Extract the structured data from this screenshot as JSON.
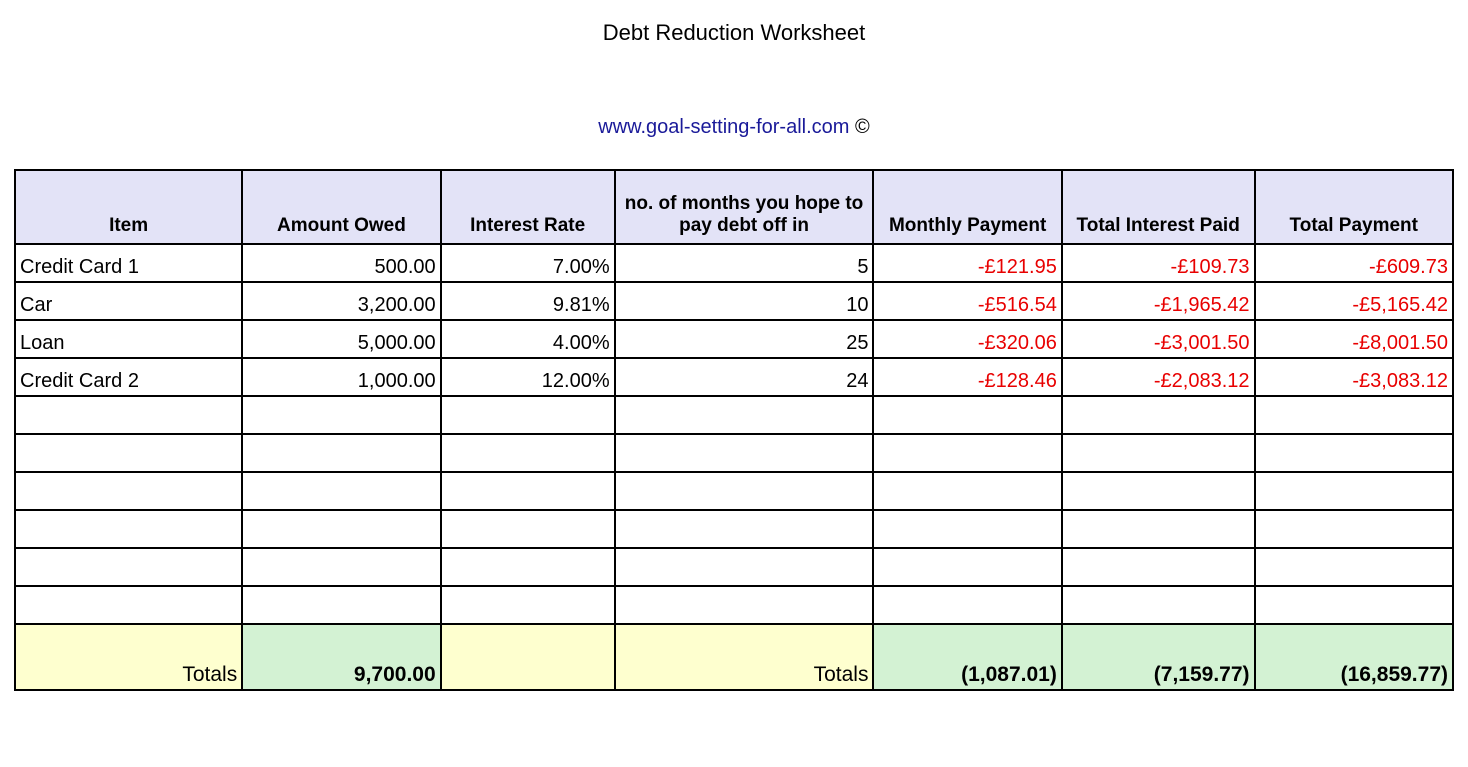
{
  "title": "Debt Reduction Worksheet",
  "link_text": "www.goal-setting-for-all.com",
  "link_suffix": " ©",
  "table": {
    "type": "table",
    "background_color": "#ffffff",
    "header_bg": "#e3e3f7",
    "totals_yellow_bg": "#feffcf",
    "totals_green_bg": "#d3f2d3",
    "border_color": "#000000",
    "text_color": "#000000",
    "negative_color": "#e80000",
    "link_color": "#1a1a99",
    "title_fontsize": 22,
    "link_fontsize": 20,
    "header_fontsize": 19,
    "cell_fontsize": 20,
    "totals_fontsize": 21,
    "column_widths_pct": [
      15.8,
      13.8,
      12.1,
      18.0,
      13.1,
      13.4,
      13.8
    ],
    "columns": [
      "Item",
      "Amount Owed",
      "Interest Rate",
      "no. of months you hope to pay debt off in",
      "Monthly Payment",
      "Total Interest Paid",
      "Total Payment"
    ],
    "column_align": [
      "left",
      "right",
      "right",
      "right",
      "right",
      "right",
      "right"
    ],
    "negative_columns": [
      false,
      false,
      false,
      false,
      true,
      true,
      true
    ],
    "rows": [
      [
        "Credit Card 1",
        "500.00",
        "7.00%",
        "5",
        "-£121.95",
        "-£109.73",
        "-£609.73"
      ],
      [
        "Car",
        "3,200.00",
        "9.81%",
        "10",
        "-£516.54",
        "-£1,965.42",
        "-£5,165.42"
      ],
      [
        "Loan",
        "5,000.00",
        "4.00%",
        "25",
        "-£320.06",
        "-£3,001.50",
        "-£8,001.50"
      ],
      [
        "Credit Card 2",
        "1,000.00",
        "12.00%",
        "24",
        "-£128.46",
        "-£2,083.12",
        "-£3,083.12"
      ],
      [
        "",
        "",
        "",
        "",
        "",
        "",
        ""
      ],
      [
        "",
        "",
        "",
        "",
        "",
        "",
        ""
      ],
      [
        "",
        "",
        "",
        "",
        "",
        "",
        ""
      ],
      [
        "",
        "",
        "",
        "",
        "",
        "",
        ""
      ],
      [
        "",
        "",
        "",
        "",
        "",
        "",
        ""
      ],
      [
        "",
        "",
        "",
        "",
        "",
        "",
        ""
      ]
    ],
    "totals_label": "Totals",
    "totals": [
      "Totals",
      "9,700.00",
      "",
      "Totals",
      "(1,087.01)",
      "(7,159.77)",
      "(16,859.77)"
    ],
    "totals_style": [
      "yellow",
      "green",
      "yellow",
      "yellow",
      "green",
      "green",
      "green"
    ]
  }
}
